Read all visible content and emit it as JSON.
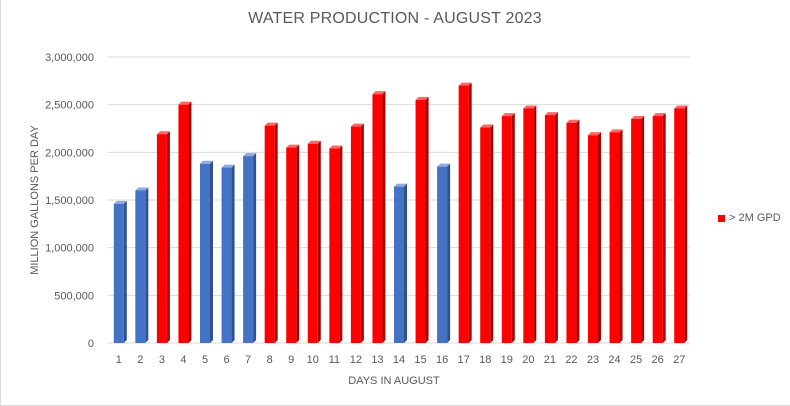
{
  "chart_data": {
    "type": "bar",
    "title": "WATER PRODUCTION - AUGUST 2023",
    "xlabel": "DAYS IN AUGUST",
    "ylabel": "MILLION GALLONS PER DAY",
    "ylim": [
      0,
      3000000
    ],
    "yticks": [
      0,
      500000,
      1000000,
      1500000,
      2000000,
      2500000,
      3000000
    ],
    "ytick_labels": [
      "0",
      "500,000",
      "1,000,000",
      "1,500,000",
      "2,000,000",
      "2,500,000",
      "3,000,000"
    ],
    "grid": true,
    "legend_position": "right",
    "legend": [
      {
        "label": "> 2M GPD",
        "color": "#ff0000"
      }
    ],
    "colors": {
      "above_2m": "#ff0000",
      "below_2m": "#4472c4"
    },
    "categories": [
      "1",
      "2",
      "3",
      "4",
      "5",
      "6",
      "7",
      "8",
      "9",
      "10",
      "11",
      "12",
      "13",
      "14",
      "15",
      "16",
      "17",
      "18",
      "19",
      "20",
      "21",
      "22",
      "23",
      "24",
      "25",
      "26",
      "27"
    ],
    "values": [
      1460000,
      1600000,
      2190000,
      2500000,
      1880000,
      1840000,
      1960000,
      2280000,
      2050000,
      2090000,
      2040000,
      2270000,
      2610000,
      1640000,
      2550000,
      1850000,
      2700000,
      2260000,
      2380000,
      2460000,
      2390000,
      2310000,
      2180000,
      2210000,
      2350000,
      2380000,
      2460000
    ],
    "bar_colors": [
      "#4472c4",
      "#4472c4",
      "#ff0000",
      "#ff0000",
      "#4472c4",
      "#4472c4",
      "#4472c4",
      "#ff0000",
      "#ff0000",
      "#ff0000",
      "#ff0000",
      "#ff0000",
      "#ff0000",
      "#4472c4",
      "#ff0000",
      "#4472c4",
      "#ff0000",
      "#ff0000",
      "#ff0000",
      "#ff0000",
      "#ff0000",
      "#ff0000",
      "#ff0000",
      "#ff0000",
      "#ff0000",
      "#ff0000",
      "#ff0000"
    ]
  }
}
